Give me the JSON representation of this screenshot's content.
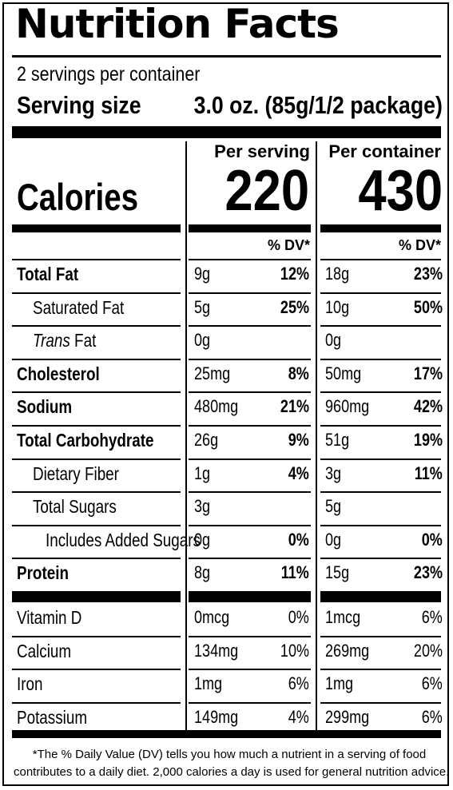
{
  "title": "Nutrition Facts",
  "servings_per_container": "2 servings per container",
  "serving_size": {
    "label": "Serving size",
    "value": "3.0 oz. (85g/1/2 package)"
  },
  "columns": {
    "per_serving": "Per serving",
    "per_container": "Per container"
  },
  "calories": {
    "label": "Calories",
    "per_serving": "220",
    "per_container": "430"
  },
  "dv_header": "% DV*",
  "nutrients": [
    {
      "name": "Total Fat",
      "bold": true,
      "indent": 0,
      "serving_amount": "9g",
      "serving_dv": "12%",
      "container_amount": "18g",
      "container_dv": "23%"
    },
    {
      "name": "Saturated Fat",
      "bold": false,
      "indent": 1,
      "serving_amount": "5g",
      "serving_dv": "25%",
      "container_amount": "10g",
      "container_dv": "50%"
    },
    {
      "name_italic": "Trans",
      "name": " Fat",
      "bold": false,
      "indent": 1,
      "serving_amount": "0g",
      "serving_dv": "",
      "container_amount": "0g",
      "container_dv": ""
    },
    {
      "name": "Cholesterol",
      "bold": true,
      "indent": 0,
      "serving_amount": "25mg",
      "serving_dv": "8%",
      "container_amount": "50mg",
      "container_dv": "17%"
    },
    {
      "name": "Sodium",
      "bold": true,
      "indent": 0,
      "serving_amount": "480mg",
      "serving_dv": "21%",
      "container_amount": "960mg",
      "container_dv": "42%"
    },
    {
      "name": "Total Carbohydrate",
      "bold": true,
      "indent": 0,
      "serving_amount": "26g",
      "serving_dv": "9%",
      "container_amount": "51g",
      "container_dv": "19%"
    },
    {
      "name": "Dietary Fiber",
      "bold": false,
      "indent": 1,
      "serving_amount": "1g",
      "serving_dv": "4%",
      "container_amount": "3g",
      "container_dv": "11%"
    },
    {
      "name": "Total Sugars",
      "bold": false,
      "indent": 1,
      "serving_amount": "3g",
      "serving_dv": "",
      "container_amount": "5g",
      "container_dv": ""
    },
    {
      "name": "Includes Added Sugars",
      "bold": false,
      "indent": 2,
      "serving_amount": "0g",
      "serving_dv": "0%",
      "container_amount": "0g",
      "container_dv": "0%"
    },
    {
      "name": "Protein",
      "bold": true,
      "indent": 0,
      "serving_amount": "8g",
      "serving_dv": "11%",
      "container_amount": "15g",
      "container_dv": "23%"
    }
  ],
  "vitamins": [
    {
      "name": "Vitamin D",
      "serving_amount": "0mcg",
      "serving_dv": "0%",
      "container_amount": "1mcg",
      "container_dv": "6%"
    },
    {
      "name": "Calcium",
      "serving_amount": "134mg",
      "serving_dv": "10%",
      "container_amount": "269mg",
      "container_dv": "20%"
    },
    {
      "name": "Iron",
      "serving_amount": "1mg",
      "serving_dv": "6%",
      "container_amount": "1mg",
      "container_dv": "6%"
    },
    {
      "name": "Potassium",
      "serving_amount": "149mg",
      "serving_dv": "4%",
      "container_amount": "299mg",
      "container_dv": "6%"
    }
  ],
  "footnote": [
    "*The % Daily Value (DV) tells you how much a nutrient in a serving of food",
    "contributes to a daily diet. 2,000 calories a day is used for general nutrition advice."
  ]
}
